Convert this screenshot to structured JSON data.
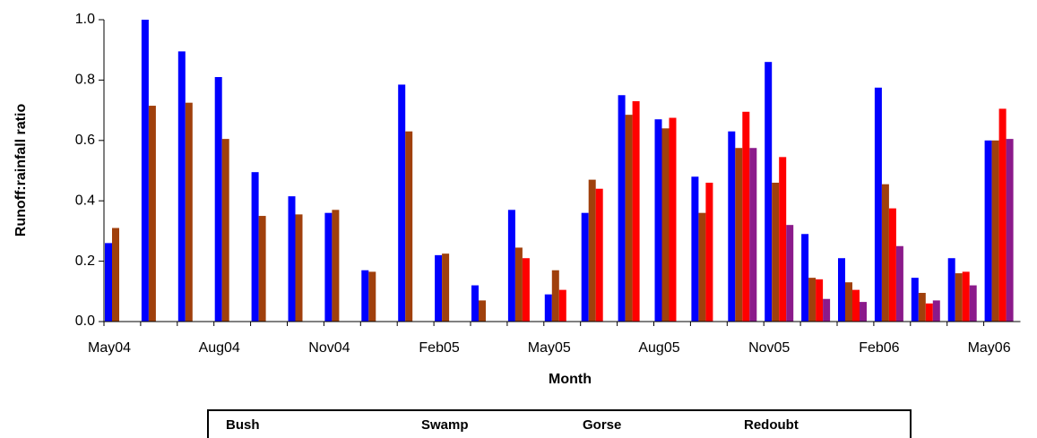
{
  "chart_data": {
    "type": "bar",
    "y_label": "Runoff:rainfall ratio",
    "x_label": "Month",
    "categories": [
      "May04",
      null,
      null,
      "Aug04",
      null,
      null,
      "Nov04",
      null,
      null,
      "Feb05",
      null,
      null,
      "May05",
      null,
      null,
      "Aug05",
      null,
      null,
      "Nov05",
      null,
      null,
      "Feb06",
      null,
      null,
      "May06"
    ],
    "series": [
      {
        "name": "Bush",
        "color": "#0000ff",
        "values": [
          0.26,
          1.0,
          0.895,
          0.81,
          0.495,
          0.415,
          0.36,
          0.17,
          0.785,
          0.22,
          0.12,
          0.37,
          0.09,
          0.36,
          0.75,
          0.67,
          0.48,
          0.63,
          0.86,
          0.29,
          0.21,
          0.775,
          0.145,
          0.21,
          0.6
        ]
      },
      {
        "name": "Swamp",
        "color": "#a0400c",
        "values": [
          0.31,
          0.715,
          0.725,
          0.605,
          0.35,
          0.355,
          0.37,
          0.165,
          0.63,
          0.225,
          0.07,
          0.245,
          0.17,
          0.47,
          0.685,
          0.64,
          0.36,
          0.575,
          0.46,
          0.145,
          0.13,
          0.455,
          0.095,
          0.16,
          0.6
        ]
      },
      {
        "name": "Gorse",
        "color": "#ff0000",
        "values": [
          null,
          null,
          null,
          null,
          null,
          null,
          null,
          null,
          null,
          null,
          null,
          0.21,
          0.105,
          0.44,
          0.73,
          0.675,
          0.46,
          0.695,
          0.545,
          0.14,
          0.105,
          0.375,
          0.06,
          0.165,
          0.705
        ]
      },
      {
        "name": "Redoubt",
        "color": "#8b1a8b",
        "values": [
          null,
          null,
          null,
          null,
          null,
          null,
          null,
          null,
          null,
          null,
          null,
          null,
          null,
          null,
          null,
          null,
          null,
          0.575,
          0.32,
          0.075,
          0.065,
          0.25,
          0.07,
          0.12,
          0.605
        ]
      }
    ],
    "ylim": [
      0,
      1.0
    ],
    "yticks": [
      {
        "value": 0,
        "label": "0.0"
      },
      {
        "value": 0.2,
        "label": "0.2"
      },
      {
        "value": 0.4,
        "label": "0.4"
      },
      {
        "value": 0.6,
        "label": "0.6"
      },
      {
        "value": 0.8,
        "label": "0.8"
      },
      {
        "value": 1.0,
        "label": "1.0"
      }
    ],
    "legend": "bottom"
  }
}
